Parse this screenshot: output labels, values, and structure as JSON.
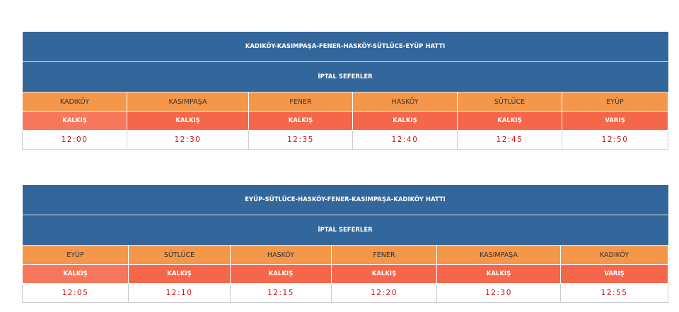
{
  "tables": [
    {
      "title": "KADIKÖY-KASIMPAŞA-FENER-HASKÖY-SÜTLÜCE-EYÜP HATTI",
      "subtitle": "İPTAL SEFERLER",
      "stations": [
        "KADIKÖY",
        "KASIMPAŞA",
        "FENER",
        "HASKÖY",
        "SÜTLÜCE",
        "EYÜP"
      ],
      "labels": [
        "KALKIŞ",
        "KALKIŞ",
        "KALKIŞ",
        "KALKIŞ",
        "KALKIŞ",
        "VARIŞ"
      ],
      "times": [
        "12:00",
        "12:30",
        "12:35",
        "12:40",
        "12:45",
        "12:50"
      ]
    },
    {
      "title": "EYÜP-SÜTLÜCE-HASKÖY-FENER-KASIMPAŞA-KADIKÖY HATTI",
      "subtitle": "İPTAL SEFERLER",
      "stations": [
        "EYÜP",
        "SÜTLÜCE",
        "HASKÖY",
        "FENER",
        "KASIMPAŞA",
        "KADIKÖY"
      ],
      "labels": [
        "KALKIŞ",
        "KALKIŞ",
        "KALKIŞ",
        "KALKIŞ",
        "KALKIŞ",
        "VARIŞ"
      ],
      "times": [
        "12:05",
        "12:10",
        "12:15",
        "12:20",
        "12:30",
        "12:55"
      ]
    }
  ]
}
